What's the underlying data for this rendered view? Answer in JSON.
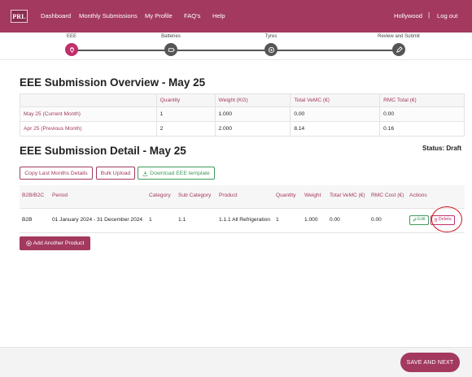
{
  "nav": {
    "logo": "PRL",
    "links": [
      "Dashboard",
      "Monthly Submissions",
      "My Profile",
      "FAQ's",
      "Help"
    ],
    "user": "Hollywood",
    "separator": "|",
    "logout": "Log out"
  },
  "stepper": {
    "steps": [
      {
        "label": "EEE",
        "icon": "plug-icon",
        "active": true
      },
      {
        "label": "Batteries",
        "icon": "battery-icon",
        "active": false
      },
      {
        "label": "Tyres",
        "icon": "tyre-icon",
        "active": false
      },
      {
        "label": "Review and Submit",
        "icon": "pen-icon",
        "active": false
      }
    ]
  },
  "overview": {
    "title": "EEE Submission Overview - May 25",
    "columns": [
      "",
      "Quantity",
      "Weight (KG)",
      "Total VeMC (€)",
      "RMC Total (€)"
    ],
    "rows": [
      [
        "May 25 (Current Month)",
        "1",
        "1.000",
        "0.00",
        "0.00"
      ],
      [
        "Apr 25 (Previous Month)",
        "2",
        "2.000",
        "8.14",
        "0.16"
      ]
    ]
  },
  "detail": {
    "title": "EEE Submission Detail - May 25",
    "status": "Status: Draft",
    "buttons": {
      "copy": "Copy Last Months Details",
      "bulk": "Bulk Upload",
      "download": "Download EEE template"
    },
    "columns": [
      "B2B/B2C",
      "Period",
      "Category",
      "Sub Category",
      "Product",
      "Quantity",
      "Weight",
      "Total VeMC (€)",
      "RMC Cost (€)",
      "Actions"
    ],
    "rows": [
      {
        "type": "B2B",
        "period": "01 January 2024 - 31 December 2024",
        "category": "1",
        "sub_category": "1.1",
        "product": "1.1.1 All Refrigeration",
        "quantity": "1",
        "weight": "1.000",
        "total_vemc": "0.00",
        "rmc_cost": "0.00",
        "edit_label": "Edit",
        "delete_label": "Delete"
      }
    ],
    "add_label": "Add Another Product"
  },
  "footer": {
    "save_label": "SAVE AND NEXT"
  },
  "colors": {
    "brand": "#a3395f",
    "active_step": "#c0306a",
    "success": "#3e9a5a",
    "highlight": "#d0111c"
  }
}
